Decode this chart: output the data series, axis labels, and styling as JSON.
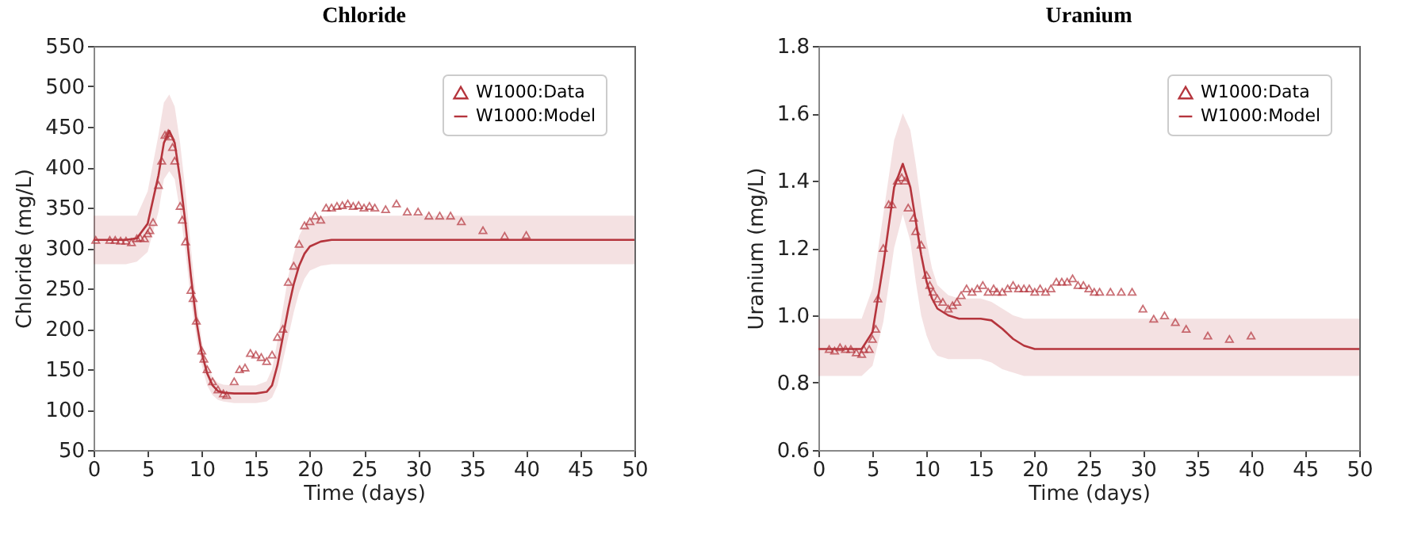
{
  "chart_data": [
    {
      "type": "line",
      "title": "Chloride",
      "xlabel": "Time (days)",
      "ylabel": "Chloride (mg/L)",
      "xlim": [
        0,
        50
      ],
      "xticks": [
        0,
        5,
        10,
        15,
        20,
        25,
        30,
        35,
        40,
        45,
        50
      ],
      "ylim": [
        50,
        550
      ],
      "yticks": [
        50,
        100,
        150,
        200,
        250,
        300,
        350,
        400,
        450,
        500,
        550
      ],
      "grid": false,
      "legend": "top right",
      "series": [
        {
          "name": "W1000:Data",
          "type": "scatter",
          "marker": "triangle",
          "color": "#b5353d",
          "x": [
            0.2,
            1.5,
            2,
            2.5,
            3,
            3.5,
            4,
            4.3,
            4.7,
            5,
            5.2,
            5.5,
            6,
            6.3,
            6.6,
            6.9,
            7.1,
            7.3,
            7.5,
            8,
            8.2,
            8.5,
            9,
            9.2,
            9.5,
            10,
            10.2,
            10.5,
            11,
            11.5,
            12,
            12.3,
            13,
            13.5,
            14,
            14.5,
            15,
            15.5,
            16,
            16.5,
            17,
            17.5,
            18,
            18.5,
            19,
            19.5,
            20,
            20.5,
            21,
            21.5,
            22,
            22.5,
            23,
            23.5,
            24,
            24.5,
            25,
            25.5,
            26,
            27,
            28,
            29,
            30,
            31,
            32,
            33,
            34,
            36,
            38,
            40
          ],
          "values": [
            310,
            310,
            310,
            309,
            309,
            307,
            312,
            313,
            312,
            318,
            322,
            332,
            378,
            408,
            440,
            442,
            438,
            425,
            408,
            352,
            335,
            308,
            248,
            238,
            210,
            173,
            163,
            150,
            135,
            125,
            120,
            118,
            135,
            150,
            152,
            170,
            168,
            165,
            160,
            168,
            190,
            200,
            258,
            278,
            305,
            328,
            333,
            340,
            335,
            350,
            350,
            352,
            353,
            355,
            352,
            353,
            350,
            352,
            350,
            348,
            355,
            345,
            345,
            340,
            340,
            340,
            333,
            322,
            315,
            316
          ]
        },
        {
          "name": "W1000:Model",
          "type": "line",
          "color": "#b5353d",
          "x": [
            0,
            3,
            4,
            5,
            6,
            6.5,
            7,
            7.5,
            8,
            8.5,
            9,
            9.5,
            10,
            10.5,
            11,
            11.5,
            12,
            13,
            14,
            15,
            16,
            16.5,
            17,
            17.5,
            18,
            18.5,
            19,
            19.5,
            20,
            21,
            22,
            50
          ],
          "values": [
            310,
            310,
            312,
            330,
            390,
            430,
            445,
            430,
            385,
            330,
            265,
            210,
            170,
            145,
            130,
            123,
            121,
            120,
            120,
            120,
            122,
            130,
            155,
            190,
            225,
            255,
            278,
            293,
            302,
            308,
            310,
            310
          ],
          "upper": [
            340,
            340,
            340,
            370,
            440,
            480,
            490,
            475,
            430,
            370,
            300,
            235,
            185,
            155,
            140,
            133,
            131,
            130,
            130,
            130,
            135,
            150,
            185,
            225,
            265,
            292,
            315,
            328,
            335,
            339,
            340,
            340
          ],
          "lower": [
            280,
            280,
            283,
            295,
            345,
            385,
            395,
            385,
            345,
            295,
            235,
            190,
            155,
            130,
            118,
            112,
            110,
            108,
            108,
            108,
            110,
            115,
            130,
            160,
            190,
            220,
            245,
            262,
            272,
            278,
            280,
            280
          ]
        }
      ]
    },
    {
      "type": "line",
      "title": "Uranium",
      "xlabel": "Time (days)",
      "ylabel": "Uranium (mg/L)",
      "xlim": [
        0,
        50
      ],
      "xticks": [
        0,
        5,
        10,
        15,
        20,
        25,
        30,
        35,
        40,
        45,
        50
      ],
      "ylim": [
        0.6,
        1.8
      ],
      "yticks": [
        {
          "value": 0.6,
          "label": "0.6"
        },
        {
          "value": 0.8,
          "label": "0.8"
        },
        {
          "value": 1,
          "label": "1.0"
        },
        {
          "value": 1.2,
          "label": "1.2"
        },
        {
          "value": 1.4,
          "label": "1.4"
        },
        {
          "value": 1.6,
          "label": "1.6"
        },
        {
          "value": 1.8,
          "label": "1.8"
        }
      ],
      "grid": false,
      "legend": "top right",
      "series": [
        {
          "name": "W1000:Data",
          "type": "scatter",
          "marker": "triangle",
          "color": "#b5353d",
          "x": [
            1,
            1.5,
            2,
            2.5,
            3,
            3.5,
            4,
            4.2,
            4.7,
            5,
            5.3,
            5.5,
            6,
            6.5,
            6.8,
            7.3,
            7.7,
            8,
            8.3,
            8.8,
            9,
            9.5,
            10,
            10.3,
            10.6,
            11,
            11.5,
            12,
            12.4,
            12.8,
            13.2,
            13.7,
            14.2,
            14.7,
            15.2,
            15.7,
            16.2,
            16.5,
            17,
            17.5,
            18,
            18.5,
            19,
            19.5,
            20,
            20.5,
            21,
            21.5,
            22,
            22.5,
            23,
            23.5,
            24,
            24.5,
            25,
            25.5,
            26,
            27,
            28,
            29,
            30,
            31,
            32,
            33,
            34,
            36,
            38,
            40
          ],
          "values": [
            0.9,
            0.895,
            0.905,
            0.9,
            0.9,
            0.89,
            0.885,
            0.9,
            0.9,
            0.93,
            0.96,
            1.05,
            1.2,
            1.33,
            1.33,
            1.4,
            1.41,
            1.4,
            1.32,
            1.29,
            1.25,
            1.21,
            1.12,
            1.09,
            1.07,
            1.05,
            1.04,
            1.02,
            1.03,
            1.04,
            1.06,
            1.08,
            1.07,
            1.08,
            1.09,
            1.07,
            1.08,
            1.07,
            1.07,
            1.08,
            1.09,
            1.08,
            1.08,
            1.08,
            1.07,
            1.08,
            1.07,
            1.08,
            1.1,
            1.1,
            1.1,
            1.11,
            1.09,
            1.09,
            1.08,
            1.07,
            1.07,
            1.07,
            1.07,
            1.07,
            1.02,
            0.99,
            1,
            0.98,
            0.96,
            0.94,
            0.93,
            0.94
          ]
        },
        {
          "name": "W1000:Model",
          "type": "line",
          "color": "#b5353d",
          "x": [
            0,
            4,
            5,
            6,
            7,
            7.8,
            8.5,
            9,
            9.5,
            10,
            10.5,
            11,
            12,
            13,
            15,
            16,
            17,
            18,
            19,
            20,
            50
          ],
          "values": [
            0.9,
            0.9,
            0.95,
            1.15,
            1.38,
            1.45,
            1.38,
            1.28,
            1.18,
            1.1,
            1.05,
            1.02,
            1,
            0.99,
            0.99,
            0.985,
            0.96,
            0.93,
            0.91,
            0.9,
            0.9
          ],
          "upper": [
            0.99,
            0.99,
            1.08,
            1.3,
            1.52,
            1.6,
            1.55,
            1.45,
            1.33,
            1.22,
            1.14,
            1.09,
            1.06,
            1.05,
            1.05,
            1.04,
            1.02,
            1,
            0.99,
            0.99,
            0.99
          ],
          "lower": [
            0.82,
            0.82,
            0.85,
            0.98,
            1.2,
            1.3,
            1.22,
            1.1,
            1,
            0.94,
            0.9,
            0.88,
            0.87,
            0.87,
            0.87,
            0.86,
            0.84,
            0.83,
            0.82,
            0.82,
            0.82
          ]
        }
      ]
    }
  ]
}
